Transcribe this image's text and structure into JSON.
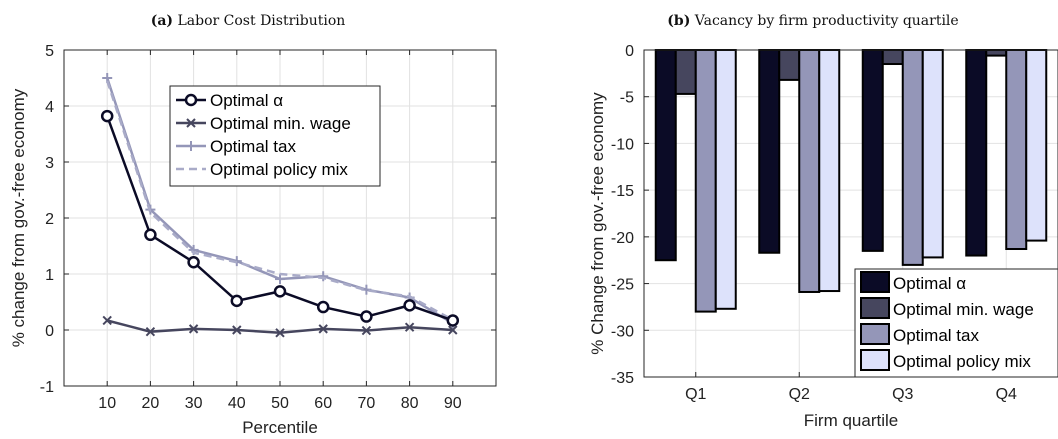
{
  "chart_data": [
    {
      "type": "line",
      "title_prefix": "(a)",
      "title": "Labor Cost Distribution",
      "xlabel": "Percentile",
      "ylabel": "% change from gov.-free economy",
      "x": [
        10,
        20,
        30,
        40,
        50,
        60,
        70,
        80,
        90
      ],
      "xlim": [
        0,
        100
      ],
      "ylim": [
        -1,
        5
      ],
      "xticks": [
        "10",
        "20",
        "30",
        "40",
        "50",
        "60",
        "70",
        "80",
        "90"
      ],
      "yticks": [
        "-1",
        "0",
        "1",
        "2",
        "3",
        "4",
        "5"
      ],
      "grid": true,
      "legend_position": "top-right",
      "series": [
        {
          "name": "Optimal α",
          "color": "#0b0b26",
          "style": "solid-circle",
          "values": [
            3.82,
            1.7,
            1.21,
            0.52,
            0.69,
            0.41,
            0.24,
            0.44,
            0.17
          ]
        },
        {
          "name": "Optimal min. wage",
          "color": "#46465e",
          "style": "solid-x",
          "values": [
            0.17,
            -0.03,
            0.02,
            0.0,
            -0.05,
            0.02,
            -0.01,
            0.05,
            0.0
          ]
        },
        {
          "name": "Optimal tax",
          "color": "#9496b8",
          "style": "solid-plus",
          "values": [
            4.5,
            2.15,
            1.43,
            1.23,
            0.91,
            0.96,
            0.72,
            0.58,
            0.12
          ]
        },
        {
          "name": "Optimal policy mix",
          "color": "#a9abc8",
          "style": "dashed",
          "values": [
            4.45,
            2.1,
            1.38,
            1.21,
            1.0,
            0.93,
            0.71,
            0.6,
            0.18
          ]
        }
      ]
    },
    {
      "type": "bar",
      "title_prefix": "(b)",
      "title": "Vacancy by firm productivity quartile",
      "xlabel": "Firm quartile",
      "ylabel": "% Change from gov.-free economy",
      "categories": [
        "Q1",
        "Q2",
        "Q3",
        "Q4"
      ],
      "ylim": [
        -35,
        0
      ],
      "yticks": [
        "0",
        "-5",
        "-10",
        "-15",
        "-20",
        "-25",
        "-30",
        "-35"
      ],
      "grid": true,
      "legend_position": "bottom-right",
      "series": [
        {
          "name": "Optimal α",
          "color": "#0b0b26",
          "values": [
            -22.5,
            -21.7,
            -21.5,
            -22.0
          ]
        },
        {
          "name": "Optimal min. wage",
          "color": "#46465e",
          "values": [
            -4.7,
            -3.2,
            -1.5,
            -0.6
          ]
        },
        {
          "name": "Optimal tax",
          "color": "#9496b8",
          "values": [
            -28.0,
            -25.9,
            -23.0,
            -21.3
          ]
        },
        {
          "name": "Optimal policy mix",
          "color": "#dde2fb",
          "values": [
            -27.7,
            -25.8,
            -22.2,
            -20.4
          ]
        }
      ]
    }
  ]
}
